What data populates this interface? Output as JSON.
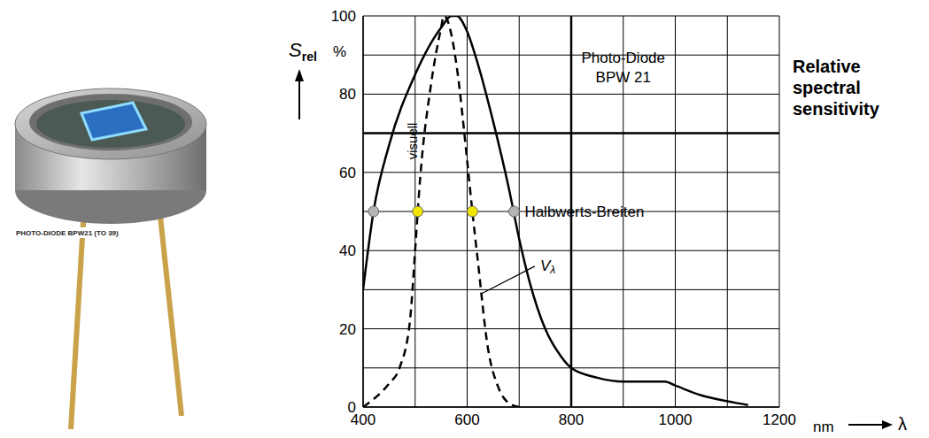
{
  "chart_data": {
    "type": "line",
    "title": "Relative spectral sensitivity",
    "xlabel": "λ",
    "xunit": "nm",
    "ylabel": "Srel",
    "yunit": "%",
    "xlim": [
      400,
      1200
    ],
    "xticks": [
      400,
      600,
      800,
      1000,
      1200
    ],
    "ylim": [
      0,
      100
    ],
    "yticks": [
      0,
      20,
      40,
      60,
      80,
      100
    ],
    "grid": true,
    "gridlines": {
      "x": [
        400,
        500,
        600,
        700,
        800,
        900,
        1000,
        1100,
        1200
      ],
      "y": [
        0,
        10,
        20,
        30,
        40,
        50,
        60,
        70,
        80,
        90,
        100
      ]
    },
    "emphasis_lines": {
      "x": [
        800
      ],
      "y": [
        70
      ]
    },
    "series": [
      {
        "name": "Photo-Diode BPW 21",
        "color": "#000000",
        "line_style": "solid",
        "label_at": {
          "x": 900,
          "y": 88
        },
        "x": [
          400,
          420,
          450,
          500,
          550,
          570,
          580,
          600,
          620,
          650,
          680,
          700,
          720,
          750,
          780,
          800,
          850,
          900,
          950,
          980,
          1000,
          1050,
          1100,
          1140
        ],
        "values": [
          30,
          50,
          67,
          85,
          97,
          100,
          100,
          96,
          88,
          73,
          56,
          43,
          32,
          20,
          13,
          10,
          7.5,
          6.5,
          6.5,
          6.5,
          5.5,
          3,
          1.5,
          0.5
        ]
      },
      {
        "name": "Vλ",
        "color": "#000000",
        "line_style": "dashed",
        "label_at": {
          "x": 730,
          "y": 36
        },
        "points_to": {
          "x": 628,
          "y": 29
        },
        "x": [
          400,
          420,
          450,
          470,
          490,
          500,
          505,
          510,
          530,
          550,
          555,
          560,
          570,
          580,
          600,
          610,
          620,
          640,
          660,
          680,
          700
        ],
        "values": [
          0,
          2,
          6,
          10,
          22,
          40,
          50,
          59,
          82,
          97,
          100,
          99.5,
          95,
          87,
          63,
          50,
          38,
          15,
          5,
          1,
          0
        ]
      }
    ],
    "annotations": [
      {
        "text": "visuell",
        "x": 494,
        "y": 68
      }
    ],
    "half_widths": {
      "text": "Halbwerts-Breiten",
      "points": [
        {
          "x": 420,
          "y": 50,
          "color": "#b4b4b4"
        },
        {
          "x": 505,
          "y": 50,
          "color": "#f2e600"
        },
        {
          "x": 610,
          "y": 50,
          "color": "#f2e600"
        },
        {
          "x": 690,
          "y": 50,
          "color": "#b4b4b4"
        }
      ]
    }
  },
  "photo": {
    "caption": "PHOTO-DIODE BPW21 (TO 39)"
  }
}
